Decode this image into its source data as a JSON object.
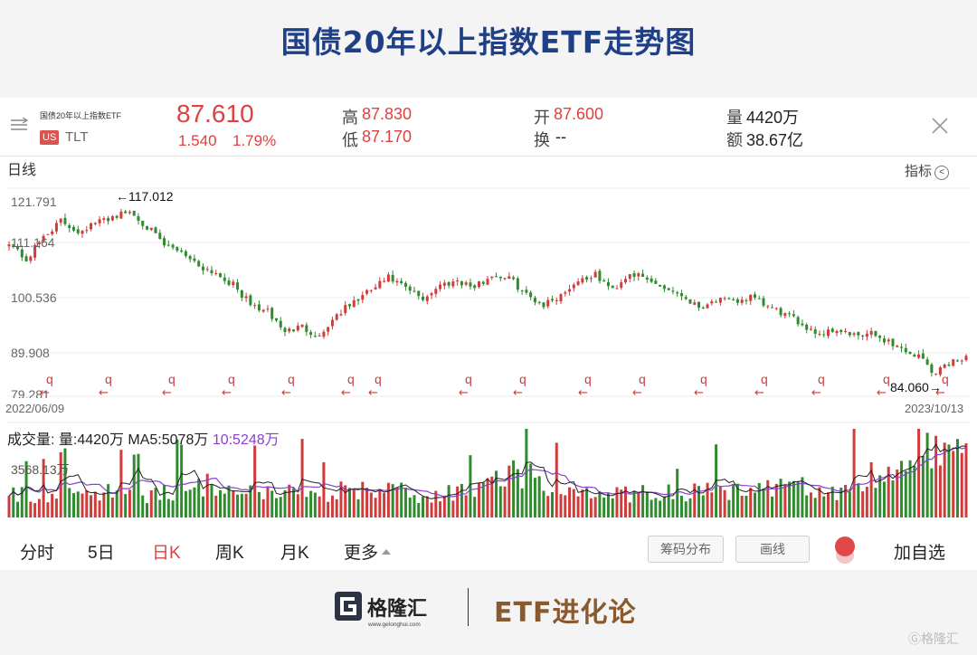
{
  "header": {
    "title": "国债20年以上指数ETF走势图"
  },
  "quote": {
    "name": "国债20年以上指数ETF",
    "market": "US",
    "ticker": "TLT",
    "price": "87.610",
    "change": "1.540",
    "change_pct": "1.79%",
    "high_label": "高",
    "high": "87.830",
    "low_label": "低",
    "low": "87.170",
    "open_label": "开",
    "open": "87.600",
    "turnover_label": "换",
    "turnover": "--",
    "volume_label": "量",
    "volume": "4420万",
    "amount_label": "额",
    "amount": "38.67亿"
  },
  "toolbar": {
    "period_label": "日线",
    "indicator_label": "指标"
  },
  "chart_data": [
    {
      "type": "candlestick",
      "title": "",
      "y_ticks": [
        "121.791",
        "111.164",
        "100.536",
        "89.908",
        "79.281"
      ],
      "ylim": [
        79.281,
        121.791
      ],
      "x_start": "2022/06/09",
      "x_end": "2023/10/13",
      "annotations": {
        "max": "←117.012",
        "min": "84.060→"
      },
      "marker_glyph": "q",
      "marker_arrow": "←",
      "color_up": "#d03c3c",
      "color_down": "#2e8b2e",
      "close_path": [
        [
          0,
          111
        ],
        [
          4,
          107
        ],
        [
          8,
          112
        ],
        [
          12,
          115
        ],
        [
          16,
          113
        ],
        [
          20,
          114.6
        ],
        [
          24,
          116
        ],
        [
          28,
          117
        ],
        [
          32,
          114
        ],
        [
          36,
          110
        ],
        [
          40,
          109
        ],
        [
          44,
          106
        ],
        [
          48,
          104.5
        ],
        [
          52,
          102
        ],
        [
          56,
          98
        ],
        [
          60,
          96.5
        ],
        [
          64,
          92.5
        ],
        [
          68,
          93.5
        ],
        [
          72,
          91.5
        ],
        [
          76,
          96
        ],
        [
          80,
          98.5
        ],
        [
          84,
          101
        ],
        [
          88,
          103.5
        ],
        [
          92,
          101.3
        ],
        [
          96,
          99.2
        ],
        [
          100,
          102
        ],
        [
          104,
          103
        ],
        [
          108,
          101.5
        ],
        [
          112,
          104
        ],
        [
          116,
          103.5
        ],
        [
          120,
          100
        ],
        [
          124,
          98
        ],
        [
          128,
          100
        ],
        [
          132,
          103
        ],
        [
          136,
          104
        ],
        [
          140,
          101
        ],
        [
          144,
          104.5
        ],
        [
          148,
          103
        ],
        [
          152,
          101.5
        ],
        [
          156,
          100
        ],
        [
          160,
          97.5
        ],
        [
          164,
          99
        ],
        [
          168,
          98.5
        ],
        [
          172,
          99.5
        ],
        [
          176,
          97.5
        ],
        [
          180,
          96
        ],
        [
          184,
          94
        ],
        [
          188,
          92
        ],
        [
          192,
          93
        ],
        [
          196,
          91.5
        ],
        [
          200,
          92
        ],
        [
          204,
          90.5
        ],
        [
          208,
          88.5
        ],
        [
          212,
          87
        ],
        [
          214,
          84.06
        ],
        [
          218,
          86
        ],
        [
          222,
          87.6
        ]
      ]
    },
    {
      "type": "bar",
      "title": "",
      "y_tick": "3568.13万",
      "legend": {
        "label": "成交量:",
        "vol": "量:4420万",
        "ma5": "MA5:5078万",
        "ma10": "10:5248万"
      },
      "colors": {
        "ma5": "#222222",
        "ma10": "#8a3fd1"
      },
      "level_path": [
        [
          0,
          0.28
        ],
        [
          20,
          0.3
        ],
        [
          40,
          0.28
        ],
        [
          50,
          0.44
        ],
        [
          60,
          0.3
        ],
        [
          80,
          0.32
        ],
        [
          100,
          0.28
        ],
        [
          110,
          0.3
        ],
        [
          118,
          0.58
        ],
        [
          124,
          0.34
        ],
        [
          140,
          0.28
        ],
        [
          160,
          0.3
        ],
        [
          180,
          0.36
        ],
        [
          195,
          0.34
        ],
        [
          205,
          0.6
        ],
        [
          212,
          0.75
        ],
        [
          222,
          0.68
        ]
      ]
    }
  ],
  "tabs": [
    {
      "label": "分时",
      "active": false
    },
    {
      "label": "5日",
      "active": false
    },
    {
      "label": "日K",
      "active": true
    },
    {
      "label": "周K",
      "active": false
    },
    {
      "label": "月K",
      "active": false
    },
    {
      "label": "更多",
      "active": false
    }
  ],
  "tools": {
    "chip_label": "筹码分布",
    "draw_label": "画线",
    "add_fav": "加自选"
  },
  "footer": {
    "brand_name": "格隆汇",
    "brand_url": "www.gelonghui.com",
    "slogan": "ETF进化论",
    "watermark": "格隆汇"
  }
}
